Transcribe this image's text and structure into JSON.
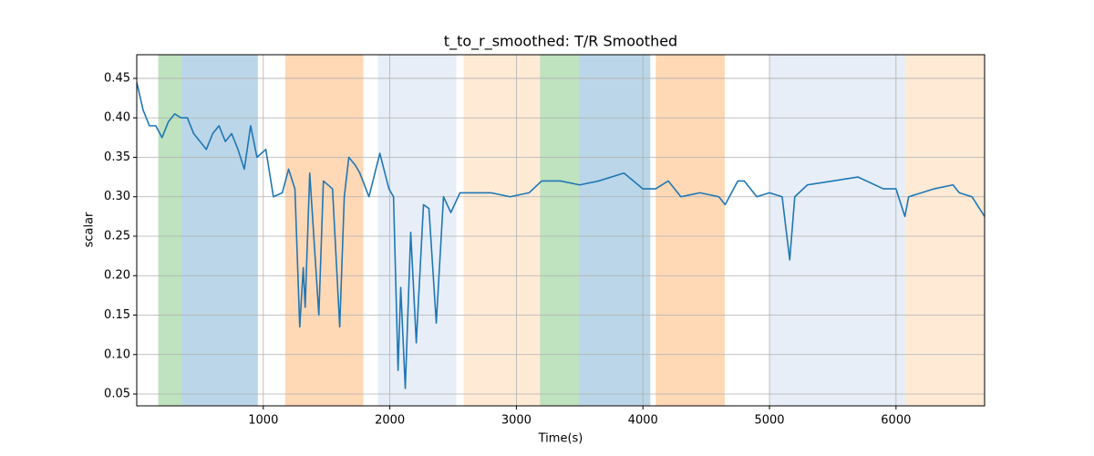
{
  "chart_data": {
    "type": "line",
    "title": "t_to_r_smoothed: T/R Smoothed",
    "xlabel": "Time(s)",
    "ylabel": "scalar",
    "xlim": [
      0,
      6700
    ],
    "ylim": [
      0.035,
      0.48
    ],
    "xticks": [
      1000,
      2000,
      3000,
      4000,
      5000,
      6000
    ],
    "yticks": [
      0.05,
      {
        "value": 0.1,
        "label": "0.10"
      },
      0.15,
      {
        "value": 0.2,
        "label": "0.20"
      },
      0.25,
      {
        "value": 0.3,
        "label": "0.30"
      },
      0.35,
      {
        "value": 0.4,
        "label": "0.40"
      },
      0.45
    ],
    "grid": true,
    "span_alpha": 0.3,
    "spans": [
      {
        "x0": 170,
        "x1": 355,
        "color": "#2ca02c"
      },
      {
        "x0": 355,
        "x1": 957,
        "color": "#1f77b4"
      },
      {
        "x0": 1173,
        "x1": 1791,
        "color": "#ff7f0e"
      },
      {
        "x0": 1906,
        "x1": 2525,
        "color": "#aec7e8"
      },
      {
        "x0": 2583,
        "x1": 3187,
        "color": "#ffbb78"
      },
      {
        "x0": 3187,
        "x1": 3496,
        "color": "#2ca02c"
      },
      {
        "x0": 3496,
        "x1": 4058,
        "color": "#1f77b4"
      },
      {
        "x0": 4101,
        "x1": 4647,
        "color": "#ff7f0e"
      },
      {
        "x0": 5000,
        "x1": 6072,
        "color": "#aec7e8"
      },
      {
        "x0": 6072,
        "x1": 6700,
        "color": "#ffbb78"
      }
    ],
    "series": [
      {
        "color": "#1f77b4",
        "x": [
          0,
          50,
          100,
          150,
          200,
          250,
          300,
          350,
          400,
          450,
          500,
          550,
          600,
          650,
          700,
          750,
          800,
          850,
          900,
          950,
          1020,
          1080,
          1150,
          1200,
          1250,
          1288,
          1316,
          1331,
          1367,
          1439,
          1475,
          1547,
          1604,
          1640,
          1676,
          1727,
          1763,
          1835,
          1921,
          1993,
          2029,
          2065,
          2086,
          2122,
          2165,
          2209,
          2266,
          2309,
          2367,
          2424,
          2482,
          2554,
          2650,
          2800,
          2950,
          3100,
          3200,
          3350,
          3500,
          3650,
          3850,
          4000,
          4100,
          4200,
          4300,
          4450,
          4600,
          4650,
          4700,
          4750,
          4800,
          4900,
          5000,
          5100,
          5160,
          5200,
          5300,
          5500,
          5700,
          5900,
          6000,
          6070,
          6100,
          6300,
          6450,
          6500,
          6600,
          6700
        ],
        "values": [
          0.445,
          0.41,
          0.39,
          0.39,
          0.375,
          0.395,
          0.405,
          0.4,
          0.4,
          0.38,
          0.37,
          0.36,
          0.38,
          0.39,
          0.37,
          0.38,
          0.36,
          0.335,
          0.39,
          0.35,
          0.36,
          0.3,
          0.305,
          0.335,
          0.31,
          0.135,
          0.21,
          0.16,
          0.33,
          0.15,
          0.32,
          0.31,
          0.135,
          0.3,
          0.35,
          0.34,
          0.33,
          0.3,
          0.355,
          0.31,
          0.3,
          0.08,
          0.185,
          0.057,
          0.255,
          0.115,
          0.29,
          0.285,
          0.14,
          0.3,
          0.28,
          0.305,
          0.305,
          0.305,
          0.3,
          0.305,
          0.32,
          0.32,
          0.315,
          0.32,
          0.33,
          0.31,
          0.31,
          0.32,
          0.3,
          0.305,
          0.3,
          0.29,
          0.305,
          0.32,
          0.32,
          0.3,
          0.305,
          0.3,
          0.22,
          0.3,
          0.315,
          0.32,
          0.325,
          0.31,
          0.31,
          0.275,
          0.3,
          0.31,
          0.315,
          0.305,
          0.3,
          0.275
        ]
      }
    ]
  }
}
